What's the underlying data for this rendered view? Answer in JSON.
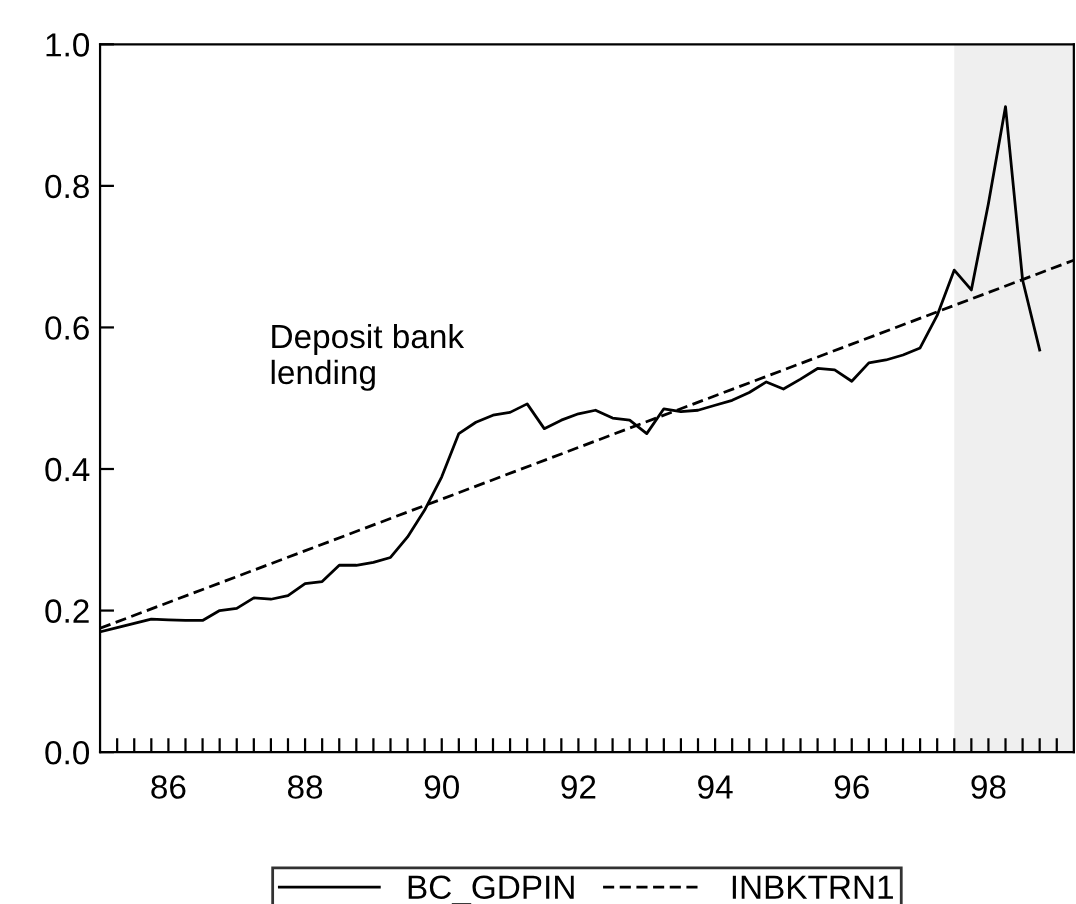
{
  "chart_data": {
    "type": "line",
    "x": [
      1985.0,
      1985.25,
      1985.5,
      1985.75,
      1986.0,
      1986.25,
      1986.5,
      1986.75,
      1987.0,
      1987.25,
      1987.5,
      1987.75,
      1988.0,
      1988.25,
      1988.5,
      1988.75,
      1989.0,
      1989.25,
      1989.5,
      1989.75,
      1990.0,
      1990.25,
      1990.5,
      1990.75,
      1991.0,
      1991.25,
      1991.5,
      1991.75,
      1992.0,
      1992.25,
      1992.5,
      1992.75,
      1993.0,
      1993.25,
      1993.5,
      1993.75,
      1994.0,
      1994.25,
      1994.5,
      1994.75,
      1995.0,
      1995.25,
      1995.5,
      1995.75,
      1996.0,
      1996.25,
      1996.5,
      1996.75,
      1997.0,
      1997.25,
      1997.5,
      1997.75,
      1998.0,
      1998.25,
      1998.5,
      1998.75
    ],
    "series": [
      {
        "name": "BC_GDPIN",
        "color": "#000000",
        "line_style": "solid",
        "values": [
          0.17,
          0.176,
          0.182,
          0.188,
          0.187,
          0.186,
          0.186,
          0.2,
          0.203,
          0.218,
          0.216,
          0.221,
          0.238,
          0.241,
          0.264,
          0.264,
          0.268,
          0.275,
          0.304,
          0.342,
          0.389,
          0.45,
          0.466,
          0.476,
          0.48,
          0.492,
          0.457,
          0.469,
          0.478,
          0.483,
          0.472,
          0.469,
          0.45,
          0.485,
          0.481,
          0.483,
          0.49,
          0.497,
          0.508,
          0.523,
          0.513,
          0.527,
          0.542,
          0.54,
          0.524,
          0.55,
          0.554,
          0.561,
          0.571,
          0.617,
          0.681,
          0.653,
          0.775,
          0.912,
          0.667,
          0.568
        ]
      },
      {
        "name": "INBKTRN1",
        "color": "#000000",
        "line_style": "dashed",
        "x": [
          1985.0,
          1999.25
        ],
        "values": [
          0.175,
          0.695
        ]
      }
    ],
    "annotations": [
      "Deposit bank\nlending"
    ],
    "bands": [
      {
        "axis": "x",
        "from": 1997.5,
        "to": 1999.25,
        "color": "#efefef"
      }
    ],
    "xlim": [
      1985.0,
      1999.25
    ],
    "xticks": [
      {
        "value": 1985.25,
        "label": null
      },
      {
        "value": 1985.5,
        "label": null
      },
      {
        "value": 1985.75,
        "label": null
      },
      {
        "value": 1986,
        "label": "86"
      },
      {
        "value": 1986.25,
        "label": null
      },
      {
        "value": 1986.5,
        "label": null
      },
      {
        "value": 1986.75,
        "label": null
      },
      {
        "value": 1987,
        "label": null
      },
      {
        "value": 1987.25,
        "label": null
      },
      {
        "value": 1987.5,
        "label": null
      },
      {
        "value": 1987.75,
        "label": null
      },
      {
        "value": 1988,
        "label": "88"
      },
      {
        "value": 1988.25,
        "label": null
      },
      {
        "value": 1988.5,
        "label": null
      },
      {
        "value": 1988.75,
        "label": null
      },
      {
        "value": 1989,
        "label": null
      },
      {
        "value": 1989.25,
        "label": null
      },
      {
        "value": 1989.5,
        "label": null
      },
      {
        "value": 1989.75,
        "label": null
      },
      {
        "value": 1990,
        "label": "90"
      },
      {
        "value": 1990.25,
        "label": null
      },
      {
        "value": 1990.5,
        "label": null
      },
      {
        "value": 1990.75,
        "label": null
      },
      {
        "value": 1991,
        "label": null
      },
      {
        "value": 1991.25,
        "label": null
      },
      {
        "value": 1991.5,
        "label": null
      },
      {
        "value": 1991.75,
        "label": null
      },
      {
        "value": 1992,
        "label": "92"
      },
      {
        "value": 1992.25,
        "label": null
      },
      {
        "value": 1992.5,
        "label": null
      },
      {
        "value": 1992.75,
        "label": null
      },
      {
        "value": 1993,
        "label": null
      },
      {
        "value": 1993.25,
        "label": null
      },
      {
        "value": 1993.5,
        "label": null
      },
      {
        "value": 1993.75,
        "label": null
      },
      {
        "value": 1994,
        "label": "94"
      },
      {
        "value": 1994.25,
        "label": null
      },
      {
        "value": 1994.5,
        "label": null
      },
      {
        "value": 1994.75,
        "label": null
      },
      {
        "value": 1995,
        "label": null
      },
      {
        "value": 1995.25,
        "label": null
      },
      {
        "value": 1995.5,
        "label": null
      },
      {
        "value": 1995.75,
        "label": null
      },
      {
        "value": 1996,
        "label": "96"
      },
      {
        "value": 1996.25,
        "label": null
      },
      {
        "value": 1996.5,
        "label": null
      },
      {
        "value": 1996.75,
        "label": null
      },
      {
        "value": 1997,
        "label": null
      },
      {
        "value": 1997.25,
        "label": null
      },
      {
        "value": 1997.5,
        "label": null
      },
      {
        "value": 1997.75,
        "label": null
      },
      {
        "value": 1998,
        "label": "98"
      },
      {
        "value": 1998.25,
        "label": null
      },
      {
        "value": 1998.5,
        "label": null
      },
      {
        "value": 1998.75,
        "label": null
      },
      {
        "value": 1999,
        "label": null
      }
    ],
    "ylim": [
      0.0,
      1.0
    ],
    "yticks": [
      {
        "value": 0,
        "label": "0.0"
      },
      {
        "value": 0.2,
        "label": "0.2"
      },
      {
        "value": 0.4,
        "label": "0.4"
      },
      {
        "value": 0.6,
        "label": "0.6"
      },
      {
        "value": 0.8,
        "label": "0.8"
      },
      {
        "value": 1.0,
        "label": "1.0"
      }
    ],
    "grid": false,
    "legend": "bottom"
  }
}
